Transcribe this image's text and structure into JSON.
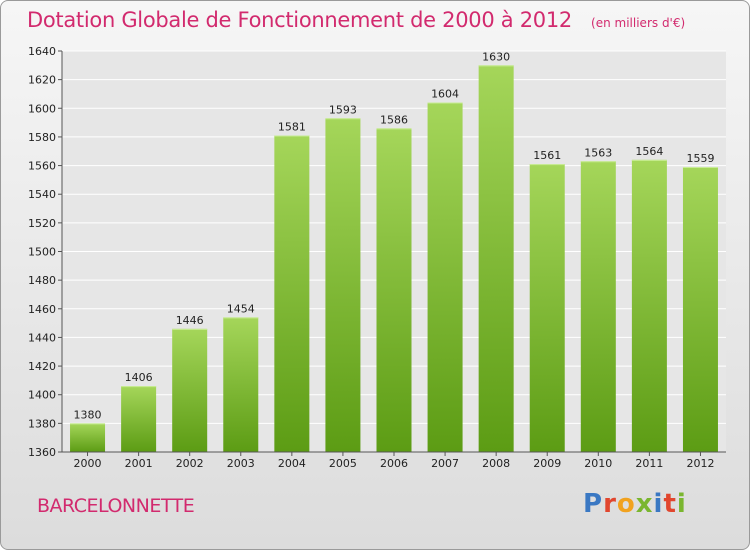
{
  "chart": {
    "title": "Dotation Globale de Fonctionnement de 2000 à 2012",
    "subtitle": "(en milliers d'€)"
  },
  "footer": {
    "place": "BARCELONNETTE",
    "logo_text": "Proxiti"
  },
  "colors": {
    "title": "#d22a6e",
    "bar_top": "#a5d65a",
    "bar_bottom": "#5c9c14",
    "grid": "#ffffff",
    "logo": [
      "#3a78c3",
      "#e1462e",
      "#f1a21f",
      "#7ab62f",
      "#3a78c3",
      "#e1462e",
      "#7ab62f"
    ]
  },
  "chart_data": {
    "type": "bar",
    "categories": [
      "2000",
      "2001",
      "2002",
      "2003",
      "2004",
      "2005",
      "2006",
      "2007",
      "2008",
      "2009",
      "2010",
      "2011",
      "2012"
    ],
    "values": [
      1380,
      1406,
      1446,
      1454,
      1581,
      1593,
      1586,
      1604,
      1630,
      1561,
      1563,
      1564,
      1559
    ],
    "title": "Dotation Globale de Fonctionnement de 2000 à 2012",
    "subtitle": "(en milliers d'€)",
    "xlabel": "",
    "ylabel": "",
    "ylim": [
      1360,
      1640
    ],
    "yticks": [
      1360,
      1380,
      1400,
      1420,
      1440,
      1460,
      1480,
      1500,
      1520,
      1540,
      1560,
      1580,
      1600,
      1620,
      1640
    ],
    "grid": true,
    "data_labels": true
  }
}
